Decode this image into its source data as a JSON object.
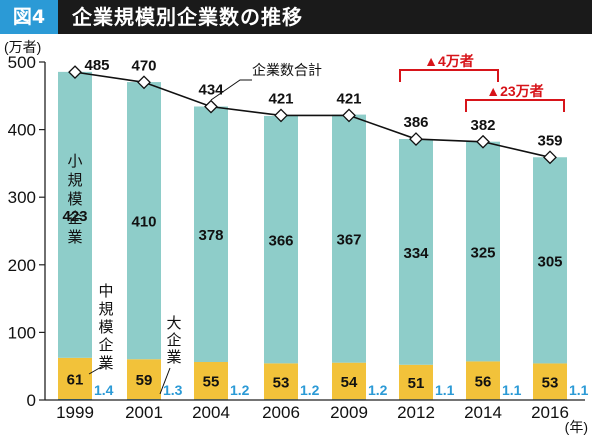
{
  "header": {
    "badge": "図4",
    "title": "企業規模別企業数の推移"
  },
  "chart_data": {
    "type": "bar",
    "stacked": true,
    "categories": [
      "1999",
      "2001",
      "2004",
      "2006",
      "2009",
      "2012",
      "2014",
      "2016"
    ],
    "series": [
      {
        "name": "大企業",
        "values": [
          1.4,
          1.3,
          1.2,
          1.2,
          1.2,
          1.1,
          1.1,
          1.1
        ],
        "color": "#2b9ad6"
      },
      {
        "name": "中規模企業",
        "values": [
          61,
          59,
          55,
          53,
          54,
          51,
          56,
          53
        ],
        "color": "#f2c23a"
      },
      {
        "name": "小規模企業",
        "values": [
          423,
          410,
          378,
          366,
          367,
          334,
          325,
          305
        ],
        "color": "#8ecdc9"
      }
    ],
    "totals": {
      "name": "企業数合計",
      "values": [
        485,
        470,
        434,
        421,
        421,
        386,
        382,
        359
      ]
    },
    "yunit": "(万者)",
    "xunit": "(年)",
    "ylim": [
      0,
      500
    ],
    "yticks": [
      0,
      100,
      200,
      300,
      400,
      500
    ],
    "annotations": {
      "total_line_label": "企業数合計",
      "change_1": {
        "text": "▲4万者",
        "from": "2012",
        "to": "2014"
      },
      "change_2": {
        "text": "▲23万者",
        "from": "2014",
        "to": "2016"
      }
    },
    "colors": {
      "small": "#8ecdc9",
      "medium": "#f2c23a",
      "large": "#2b9ad6",
      "annotation": "#d7141a"
    }
  }
}
